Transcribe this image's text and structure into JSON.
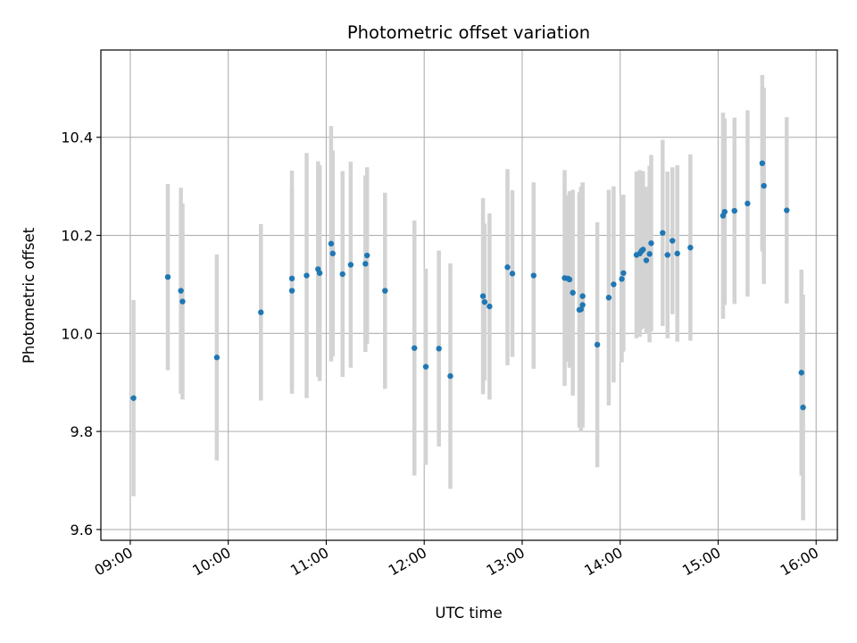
{
  "chart_data": {
    "type": "scatter",
    "title": "Photometric offset variation",
    "xlabel": "UTC time",
    "ylabel": "Photometric offset",
    "x_is_time": true,
    "xlim": [
      "08:42",
      "16:13"
    ],
    "ylim": [
      9.578,
      10.578
    ],
    "xticks": [
      "09:00",
      "10:00",
      "11:00",
      "12:00",
      "13:00",
      "14:00",
      "15:00",
      "16:00"
    ],
    "yticks": [
      "9.6",
      "9.8",
      "10.0",
      "10.2",
      "10.4"
    ],
    "grid": true,
    "colors": {
      "points": "#1f77b4",
      "errorbars": "#d3d3d3",
      "grid": "#b0b0b0"
    },
    "x": [
      "09:02",
      "09:23",
      "09:31",
      "09:32",
      "09:53",
      "10:20",
      "10:39",
      "10:39",
      "10:48",
      "10:55",
      "10:56",
      "11:03",
      "11:04",
      "11:10",
      "11:15",
      "11:24",
      "11:25",
      "11:36",
      "11:54",
      "12:01",
      "12:09",
      "12:16",
      "12:36",
      "12:37",
      "12:40",
      "12:51",
      "12:54",
      "13:07",
      "13:26",
      "13:28",
      "13:29",
      "13:31",
      "13:35",
      "13:36",
      "13:37",
      "13:37",
      "13:46",
      "13:53",
      "13:56",
      "14:01",
      "14:02",
      "14:10",
      "14:12",
      "14:13",
      "14:14",
      "14:16",
      "14:18",
      "14:19",
      "14:26",
      "14:29",
      "14:32",
      "14:35",
      "14:43",
      "15:03",
      "15:04",
      "15:10",
      "15:18",
      "15:27",
      "15:28",
      "15:42",
      "15:51",
      "15:52"
    ],
    "y": [
      9.868,
      10.115,
      10.087,
      10.065,
      9.951,
      10.043,
      10.112,
      10.087,
      10.118,
      10.131,
      10.123,
      10.183,
      10.163,
      10.121,
      10.14,
      10.142,
      10.159,
      10.087,
      9.97,
      9.932,
      9.969,
      9.913,
      10.076,
      10.064,
      10.055,
      10.135,
      10.122,
      10.118,
      10.113,
      10.112,
      10.11,
      10.083,
      10.048,
      10.049,
      10.076,
      10.058,
      9.977,
      10.073,
      10.1,
      10.111,
      10.123,
      10.16,
      10.163,
      10.168,
      10.171,
      10.149,
      10.162,
      10.184,
      10.205,
      10.16,
      10.189,
      10.163,
      10.175,
      10.24,
      10.248,
      10.25,
      10.265,
      10.347,
      10.301,
      10.251,
      9.92,
      9.849
    ],
    "yerr": [
      0.2,
      0.19,
      0.21,
      0.2,
      0.21,
      0.18,
      0.22,
      0.21,
      0.25,
      0.22,
      0.22,
      0.24,
      0.21,
      0.21,
      0.21,
      0.18,
      0.18,
      0.2,
      0.26,
      0.2,
      0.2,
      0.23,
      0.2,
      0.16,
      0.19,
      0.2,
      0.17,
      0.19,
      0.22,
      0.17,
      0.18,
      0.21,
      0.24,
      0.25,
      0.23,
      0.25,
      0.25,
      0.22,
      0.2,
      0.17,
      0.16,
      0.17,
      0.17,
      0.16,
      0.16,
      0.15,
      0.18,
      0.18,
      0.19,
      0.17,
      0.15,
      0.18,
      0.19,
      0.21,
      0.19,
      0.19,
      0.19,
      0.18,
      0.2,
      0.19,
      0.21,
      0.23
    ]
  }
}
